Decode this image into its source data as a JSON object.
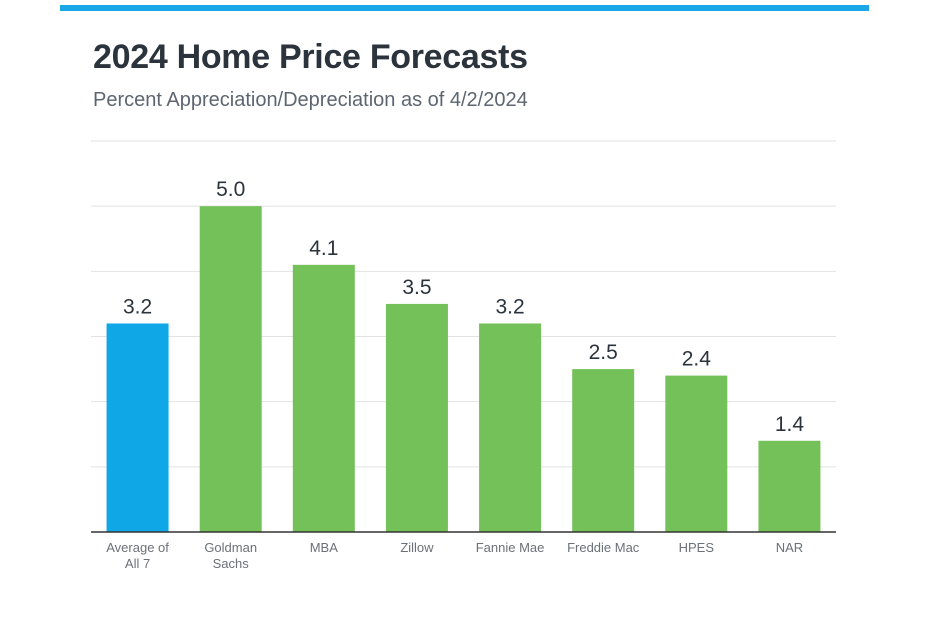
{
  "header": {
    "title": "2024 Home Price Forecasts",
    "subtitle": "Percent Appreciation/Depreciation as of 4/2/2024"
  },
  "colors": {
    "accent_bar": "#1aa7e8",
    "average_bar": "#10a7e6",
    "forecast_bar": "#74c15a",
    "gridline": "#e2e2e2",
    "axis": "#333333"
  },
  "chart_data": {
    "type": "bar",
    "title": "2024 Home Price Forecasts",
    "subtitle": "Percent Appreciation/Depreciation as of 4/2/2024",
    "xlabel": "",
    "ylabel": "",
    "ylim": [
      0,
      6
    ],
    "grid": true,
    "legend": "none",
    "categories": [
      [
        "Average of",
        "All 7"
      ],
      [
        "Goldman",
        "Sachs"
      ],
      [
        "MBA"
      ],
      [
        "Zillow"
      ],
      [
        "Fannie Mae"
      ],
      [
        "Freddie Mac"
      ],
      [
        "HPES"
      ],
      [
        "NAR"
      ]
    ],
    "values": [
      3.2,
      5.0,
      4.1,
      3.5,
      3.2,
      2.5,
      2.4,
      1.4
    ],
    "value_labels": [
      "3.2",
      "5.0",
      "4.1",
      "3.5",
      "3.2",
      "2.5",
      "2.4",
      "1.4"
    ],
    "highlight_index": 0
  }
}
